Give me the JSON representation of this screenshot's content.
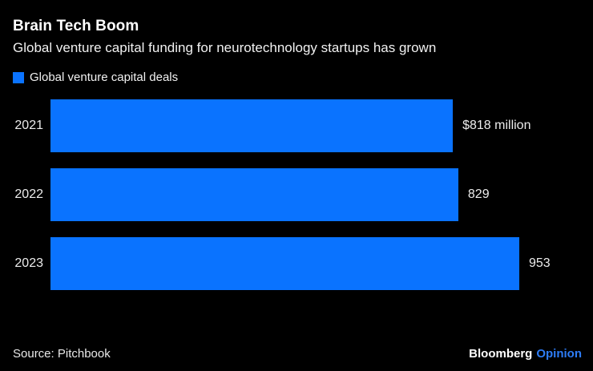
{
  "header": {
    "title": "Brain Tech Boom",
    "subtitle": "Global venture capital funding for neurotechnology startups has grown"
  },
  "legend": {
    "label": "Global venture capital deals"
  },
  "chart_data": {
    "type": "bar",
    "orientation": "horizontal",
    "title": "Brain Tech Boom",
    "subtitle": "Global venture capital funding for neurotechnology startups has grown",
    "categories": [
      "2021",
      "2022",
      "2023"
    ],
    "values": [
      818,
      829,
      953
    ],
    "value_labels": [
      "$818 million",
      "829",
      "953"
    ],
    "legend_entries": [
      "Global venture capital deals"
    ],
    "legend_position": "top-left",
    "xlim": [
      0,
      953
    ],
    "grid": false
  },
  "footer": {
    "source": "Source: Pitchbook",
    "brand": "Bloomberg",
    "brand_suffix": "Opinion"
  },
  "colors": {
    "background": "#000000",
    "bar": "#0a73ff",
    "title_text": "#ffffff",
    "body_text": "#ececec",
    "opinion_blue": "#2d7cf5"
  }
}
